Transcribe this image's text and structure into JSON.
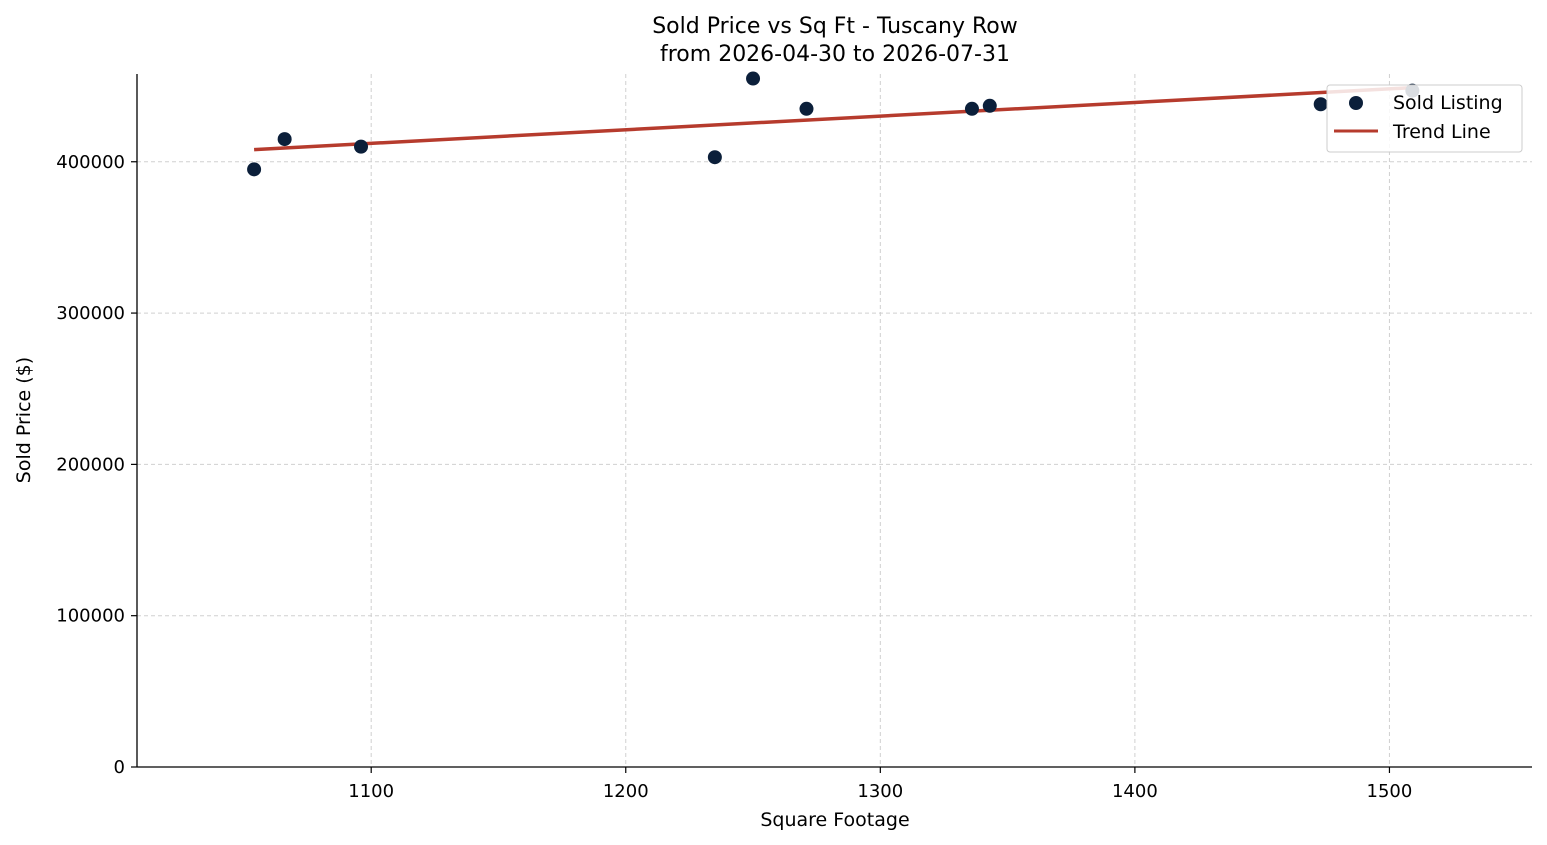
{
  "chart_data": {
    "type": "scatter",
    "title": "Sold Price vs Sq Ft - Tuscany Row",
    "subtitle": "from 2026-04-30 to 2026-07-31",
    "xlabel": "Square Footage",
    "ylabel": "Sold Price ($)",
    "xlim": [
      1008,
      1556
    ],
    "ylim": [
      0,
      458000
    ],
    "xticks": [
      1100,
      1200,
      1300,
      1400,
      1500
    ],
    "yticks": [
      0,
      100000,
      200000,
      300000,
      400000
    ],
    "xtick_labels": [
      "1100",
      "1200",
      "1300",
      "1400",
      "1500"
    ],
    "ytick_labels": [
      "0",
      "100000",
      "200000",
      "300000",
      "400000"
    ],
    "grid": true,
    "legend_position": "top-right",
    "series": [
      {
        "name": "Sold Listing",
        "kind": "scatter",
        "color": "#0b1f3a",
        "points": [
          {
            "x": 1054,
            "y": 395000
          },
          {
            "x": 1066,
            "y": 415000
          },
          {
            "x": 1096,
            "y": 410000
          },
          {
            "x": 1235,
            "y": 403000
          },
          {
            "x": 1250,
            "y": 455000
          },
          {
            "x": 1271,
            "y": 435000
          },
          {
            "x": 1336,
            "y": 435000
          },
          {
            "x": 1343,
            "y": 437000
          },
          {
            "x": 1473,
            "y": 438000
          },
          {
            "x": 1509,
            "y": 447000
          }
        ]
      },
      {
        "name": "Trend Line",
        "kind": "line",
        "color": "#b63b2d",
        "points": [
          {
            "x": 1054,
            "y": 408000
          },
          {
            "x": 1509,
            "y": 449000
          }
        ]
      }
    ]
  }
}
